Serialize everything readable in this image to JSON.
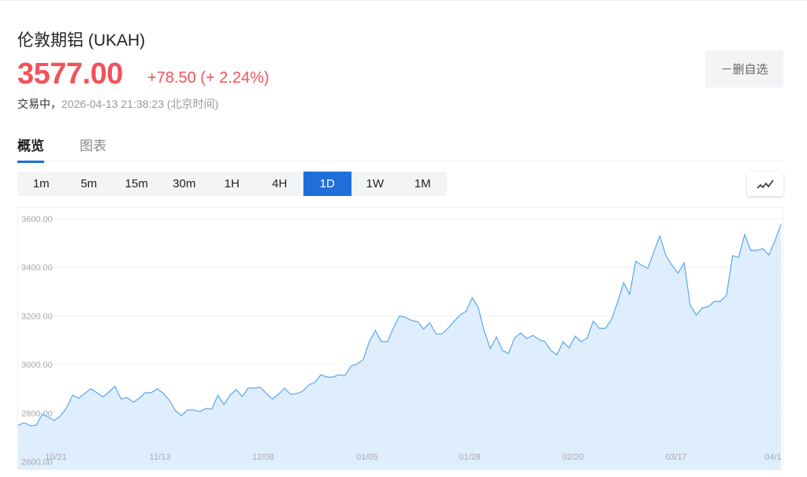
{
  "header": {
    "title": "伦敦期铝 (UKAH)",
    "price": "3577.00",
    "change": "+78.50 (+ 2.24%)",
    "status": "交易中，",
    "timestamp": "2026-04-13 21:38:23 (北京时间)",
    "unwatch_label": "－删自选"
  },
  "tabs": [
    {
      "label": "概览",
      "active": true
    },
    {
      "label": "图表",
      "active": false
    }
  ],
  "periods": [
    "1m",
    "5m",
    "15m",
    "30m",
    "1H",
    "4H",
    "1D",
    "1W",
    "1M"
  ],
  "active_period": "1D",
  "chart_type_icon": "line-chart-icon",
  "colors": {
    "up": "#f4515a",
    "accent": "#1e6fd9",
    "line": "#5aa6f0",
    "fill": "#dfeefd"
  },
  "chart_data": {
    "type": "area",
    "ylim": [
      2600,
      3600
    ],
    "y_ticks": [
      "3600.00",
      "3400.00",
      "3200.00",
      "3000.00",
      "2800.00",
      "2600.00"
    ],
    "x_ticks": [
      "10/21",
      "11/13",
      "12/08",
      "01/05",
      "01/28",
      "02/20",
      "03/17",
      "04/1"
    ],
    "grid": true,
    "values": [
      2750,
      2760,
      2748,
      2750,
      2796,
      2783,
      2770,
      2789,
      2822,
      2874,
      2862,
      2881,
      2900,
      2884,
      2867,
      2887,
      2910,
      2858,
      2864,
      2845,
      2861,
      2884,
      2884,
      2900,
      2881,
      2852,
      2810,
      2790,
      2813,
      2813,
      2806,
      2819,
      2816,
      2874,
      2835,
      2874,
      2897,
      2868,
      2903,
      2903,
      2906,
      2881,
      2858,
      2877,
      2903,
      2877,
      2880,
      2890,
      2916,
      2926,
      2958,
      2948,
      2948,
      2958,
      2955,
      2994,
      3003,
      3020,
      3094,
      3140,
      3094,
      3094,
      3152,
      3200,
      3194,
      3181,
      3176,
      3146,
      3172,
      3126,
      3126,
      3149,
      3178,
      3204,
      3220,
      3276,
      3234,
      3136,
      3065,
      3114,
      3058,
      3045,
      3110,
      3130,
      3107,
      3120,
      3104,
      3094,
      3058,
      3040,
      3094,
      3068,
      3117,
      3094,
      3110,
      3179,
      3149,
      3149,
      3185,
      3256,
      3337,
      3289,
      3425,
      3409,
      3396,
      3464,
      3529,
      3448,
      3409,
      3376,
      3419,
      3244,
      3204,
      3233,
      3239,
      3260,
      3260,
      3286,
      3448,
      3442,
      3535,
      3470,
      3470,
      3477,
      3451,
      3510,
      3577
    ]
  }
}
